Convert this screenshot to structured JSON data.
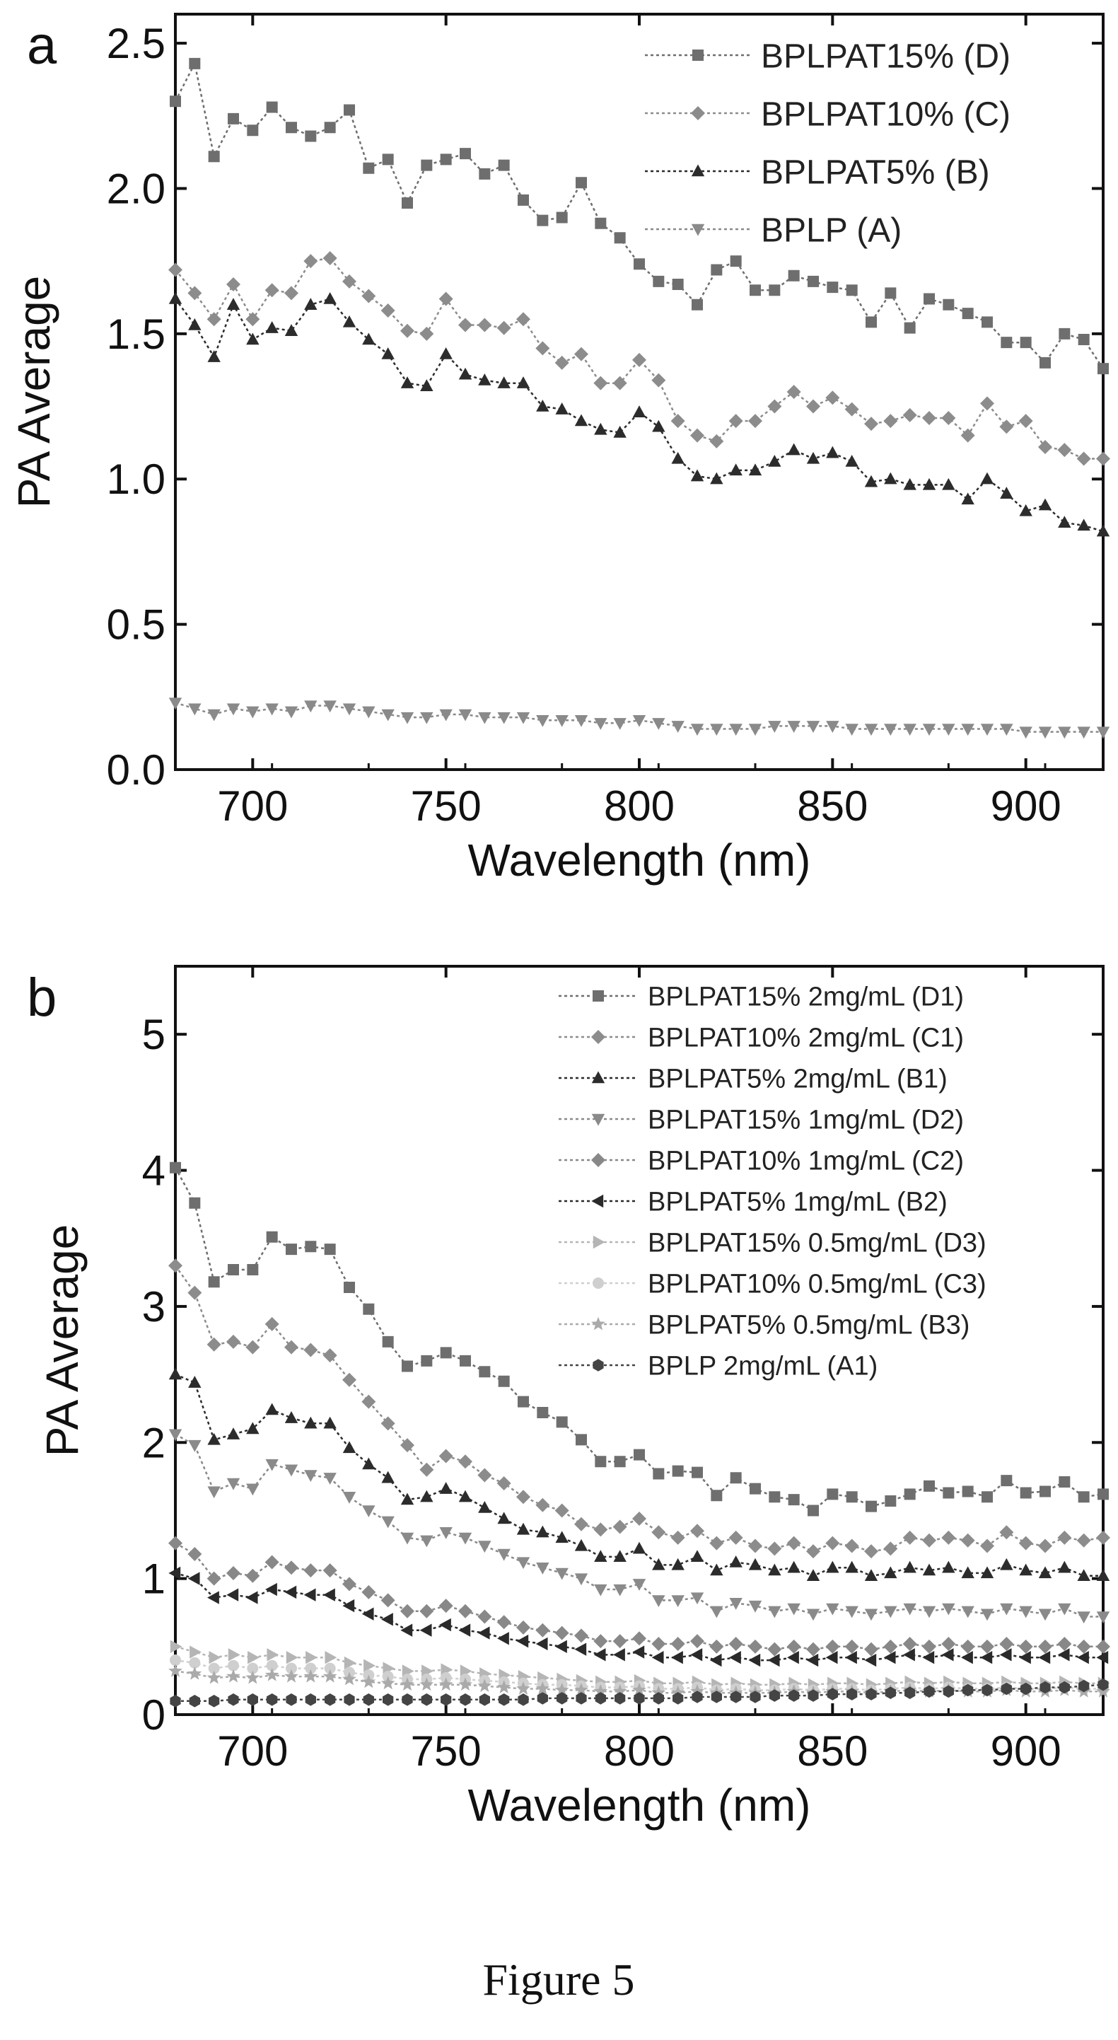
{
  "caption": "Figure 5",
  "colors": {
    "axis": "#111111",
    "series": [
      "#6e6e6e",
      "#8c8c8c",
      "#2c2c2c",
      "#8a8a8a",
      "#888888",
      "#2a2a2a",
      "#b5b5b5",
      "#cfcfcf",
      "#aaaaaa",
      "#444444"
    ]
  },
  "chart_data": [
    {
      "panel_label": "a",
      "type": "scatter",
      "xlabel": "Wavelength (nm)",
      "ylabel": "PA Average",
      "xlim": [
        680,
        920
      ],
      "ylim": [
        0.0,
        2.6
      ],
      "xticks": [
        700,
        750,
        800,
        850,
        900
      ],
      "xtick_labels": [
        "700",
        "750",
        "800",
        "850",
        "900"
      ],
      "yticks": [
        0.0,
        0.5,
        1.0,
        1.5,
        2.0,
        2.5
      ],
      "ytick_labels": [
        "0.0",
        "0.5",
        "1.0",
        "1.5",
        "2.0",
        "2.5"
      ],
      "legend_position": "top-right",
      "grid": false,
      "x": [
        680,
        685,
        690,
        695,
        700,
        705,
        710,
        715,
        720,
        725,
        730,
        735,
        740,
        745,
        750,
        755,
        760,
        765,
        770,
        775,
        780,
        785,
        790,
        795,
        800,
        805,
        810,
        815,
        820,
        825,
        830,
        835,
        840,
        845,
        850,
        855,
        860,
        865,
        870,
        875,
        880,
        885,
        890,
        895,
        900,
        905,
        910,
        915,
        920
      ],
      "series": [
        {
          "name": "BPLPAT15% (D)",
          "marker": "square",
          "values": [
            2.3,
            2.43,
            2.11,
            2.24,
            2.2,
            2.28,
            2.21,
            2.18,
            2.21,
            2.27,
            2.07,
            2.1,
            1.95,
            2.08,
            2.1,
            2.12,
            2.05,
            2.08,
            1.96,
            1.89,
            1.9,
            2.02,
            1.88,
            1.83,
            1.74,
            1.68,
            1.67,
            1.6,
            1.72,
            1.75,
            1.65,
            1.65,
            1.7,
            1.68,
            1.66,
            1.65,
            1.54,
            1.64,
            1.52,
            1.62,
            1.6,
            1.57,
            1.54,
            1.47,
            1.47,
            1.4,
            1.5,
            1.48,
            1.38
          ]
        },
        {
          "name": "BPLPAT10% (C)",
          "marker": "diamond",
          "values": [
            1.72,
            1.64,
            1.55,
            1.67,
            1.55,
            1.65,
            1.64,
            1.75,
            1.76,
            1.68,
            1.63,
            1.58,
            1.51,
            1.5,
            1.62,
            1.53,
            1.53,
            1.52,
            1.55,
            1.45,
            1.4,
            1.43,
            1.33,
            1.33,
            1.41,
            1.34,
            1.2,
            1.15,
            1.13,
            1.2,
            1.2,
            1.25,
            1.3,
            1.25,
            1.28,
            1.24,
            1.19,
            1.2,
            1.22,
            1.21,
            1.21,
            1.15,
            1.26,
            1.18,
            1.2,
            1.11,
            1.1,
            1.07,
            1.07
          ]
        },
        {
          "name": "BPLPAT5% (B)",
          "marker": "triangle-up",
          "values": [
            1.62,
            1.53,
            1.42,
            1.6,
            1.48,
            1.52,
            1.51,
            1.6,
            1.62,
            1.54,
            1.48,
            1.43,
            1.33,
            1.32,
            1.43,
            1.36,
            1.34,
            1.33,
            1.33,
            1.25,
            1.24,
            1.2,
            1.17,
            1.16,
            1.23,
            1.18,
            1.07,
            1.01,
            1.0,
            1.03,
            1.03,
            1.06,
            1.1,
            1.07,
            1.09,
            1.06,
            0.99,
            1.0,
            0.98,
            0.98,
            0.98,
            0.93,
            1.0,
            0.95,
            0.89,
            0.91,
            0.85,
            0.84,
            0.82
          ]
        },
        {
          "name": "BPLP (A)",
          "marker": "triangle-down",
          "values": [
            0.23,
            0.21,
            0.19,
            0.21,
            0.2,
            0.21,
            0.2,
            0.22,
            0.22,
            0.21,
            0.2,
            0.19,
            0.18,
            0.18,
            0.19,
            0.19,
            0.18,
            0.18,
            0.18,
            0.17,
            0.17,
            0.17,
            0.16,
            0.16,
            0.17,
            0.16,
            0.15,
            0.14,
            0.14,
            0.14,
            0.14,
            0.15,
            0.15,
            0.15,
            0.15,
            0.14,
            0.14,
            0.14,
            0.14,
            0.14,
            0.14,
            0.14,
            0.14,
            0.14,
            0.13,
            0.13,
            0.13,
            0.13,
            0.13
          ]
        }
      ]
    },
    {
      "panel_label": "b",
      "type": "scatter",
      "xlabel": "Wavelength (nm)",
      "ylabel": "PA Average",
      "xlim": [
        680,
        920
      ],
      "ylim": [
        0,
        5.5
      ],
      "xticks": [
        700,
        750,
        800,
        850,
        900
      ],
      "xtick_labels": [
        "700",
        "750",
        "800",
        "850",
        "900"
      ],
      "yticks": [
        0,
        1,
        2,
        3,
        4,
        5
      ],
      "ytick_labels": [
        "0",
        "1",
        "2",
        "3",
        "4",
        "5"
      ],
      "legend_position": "top-right",
      "grid": false,
      "x": [
        680,
        685,
        690,
        695,
        700,
        705,
        710,
        715,
        720,
        725,
        730,
        735,
        740,
        745,
        750,
        755,
        760,
        765,
        770,
        775,
        780,
        785,
        790,
        795,
        800,
        805,
        810,
        815,
        820,
        825,
        830,
        835,
        840,
        845,
        850,
        855,
        860,
        865,
        870,
        875,
        880,
        885,
        890,
        895,
        900,
        905,
        910,
        915,
        920
      ],
      "series": [
        {
          "name": "BPLPAT15% 2mg/mL (D1)",
          "marker": "square",
          "values": [
            4.02,
            3.76,
            3.18,
            3.27,
            3.27,
            3.51,
            3.42,
            3.44,
            3.42,
            3.14,
            2.98,
            2.74,
            2.56,
            2.6,
            2.66,
            2.6,
            2.52,
            2.45,
            2.3,
            2.22,
            2.15,
            2.02,
            1.86,
            1.86,
            1.91,
            1.77,
            1.79,
            1.78,
            1.61,
            1.74,
            1.66,
            1.6,
            1.58,
            1.5,
            1.62,
            1.6,
            1.53,
            1.57,
            1.62,
            1.68,
            1.63,
            1.64,
            1.6,
            1.72,
            1.63,
            1.64,
            1.71,
            1.6,
            1.62
          ]
        },
        {
          "name": "BPLPAT10% 2mg/mL (C1)",
          "marker": "diamond",
          "values": [
            3.3,
            3.1,
            2.72,
            2.74,
            2.7,
            2.87,
            2.7,
            2.68,
            2.64,
            2.46,
            2.3,
            2.14,
            1.98,
            1.8,
            1.9,
            1.86,
            1.76,
            1.7,
            1.6,
            1.54,
            1.5,
            1.4,
            1.36,
            1.38,
            1.44,
            1.34,
            1.3,
            1.35,
            1.26,
            1.3,
            1.24,
            1.22,
            1.26,
            1.2,
            1.26,
            1.24,
            1.2,
            1.22,
            1.3,
            1.28,
            1.3,
            1.28,
            1.24,
            1.34,
            1.26,
            1.24,
            1.3,
            1.28,
            1.3
          ]
        },
        {
          "name": "BPLPAT5% 2mg/mL (B1)",
          "marker": "triangle-up",
          "values": [
            2.5,
            2.44,
            2.02,
            2.06,
            2.1,
            2.24,
            2.18,
            2.14,
            2.14,
            1.96,
            1.84,
            1.74,
            1.58,
            1.6,
            1.66,
            1.6,
            1.52,
            1.44,
            1.36,
            1.34,
            1.3,
            1.24,
            1.16,
            1.16,
            1.22,
            1.1,
            1.1,
            1.16,
            1.06,
            1.12,
            1.1,
            1.06,
            1.08,
            1.02,
            1.08,
            1.08,
            1.02,
            1.04,
            1.08,
            1.06,
            1.08,
            1.04,
            1.04,
            1.1,
            1.06,
            1.04,
            1.08,
            1.02,
            1.02
          ]
        },
        {
          "name": "BPLPAT15% 1mg/mL (D2)",
          "marker": "triangle-down",
          "values": [
            2.06,
            1.98,
            1.64,
            1.7,
            1.66,
            1.84,
            1.8,
            1.76,
            1.74,
            1.6,
            1.5,
            1.42,
            1.3,
            1.28,
            1.34,
            1.3,
            1.24,
            1.18,
            1.12,
            1.08,
            1.04,
            1.0,
            0.92,
            0.92,
            0.96,
            0.84,
            0.84,
            0.86,
            0.76,
            0.82,
            0.8,
            0.76,
            0.78,
            0.74,
            0.78,
            0.76,
            0.74,
            0.76,
            0.78,
            0.76,
            0.78,
            0.76,
            0.74,
            0.78,
            0.76,
            0.74,
            0.78,
            0.72,
            0.72
          ]
        },
        {
          "name": "BPLPAT10% 1mg/mL (C2)",
          "marker": "diamond",
          "values": [
            1.26,
            1.18,
            1.0,
            1.04,
            1.02,
            1.12,
            1.08,
            1.06,
            1.06,
            0.96,
            0.9,
            0.84,
            0.76,
            0.76,
            0.8,
            0.76,
            0.72,
            0.68,
            0.64,
            0.62,
            0.6,
            0.58,
            0.54,
            0.54,
            0.56,
            0.52,
            0.52,
            0.54,
            0.5,
            0.52,
            0.5,
            0.48,
            0.5,
            0.48,
            0.5,
            0.5,
            0.48,
            0.5,
            0.52,
            0.5,
            0.52,
            0.5,
            0.5,
            0.52,
            0.5,
            0.5,
            0.52,
            0.5,
            0.5
          ]
        },
        {
          "name": "BPLPAT5% 1mg/mL (B2)",
          "marker": "triangle-left",
          "values": [
            1.04,
            1.0,
            0.86,
            0.88,
            0.86,
            0.92,
            0.9,
            0.88,
            0.88,
            0.8,
            0.74,
            0.7,
            0.62,
            0.62,
            0.66,
            0.62,
            0.6,
            0.56,
            0.54,
            0.52,
            0.5,
            0.48,
            0.44,
            0.44,
            0.46,
            0.42,
            0.42,
            0.44,
            0.4,
            0.42,
            0.4,
            0.4,
            0.42,
            0.4,
            0.42,
            0.42,
            0.4,
            0.42,
            0.44,
            0.42,
            0.44,
            0.42,
            0.42,
            0.44,
            0.42,
            0.42,
            0.44,
            0.42,
            0.42
          ]
        },
        {
          "name": "BPLPAT15% 0.5mg/mL (D3)",
          "marker": "triangle-right",
          "values": [
            0.5,
            0.46,
            0.42,
            0.44,
            0.42,
            0.44,
            0.42,
            0.42,
            0.42,
            0.38,
            0.36,
            0.34,
            0.32,
            0.32,
            0.33,
            0.32,
            0.3,
            0.29,
            0.28,
            0.27,
            0.26,
            0.25,
            0.24,
            0.24,
            0.25,
            0.23,
            0.23,
            0.24,
            0.22,
            0.23,
            0.22,
            0.22,
            0.23,
            0.22,
            0.23,
            0.23,
            0.22,
            0.23,
            0.24,
            0.23,
            0.24,
            0.23,
            0.23,
            0.24,
            0.23,
            0.23,
            0.24,
            0.23,
            0.23
          ]
        },
        {
          "name": "BPLPAT10% 0.5mg/mL (C3)",
          "marker": "circle",
          "values": [
            0.4,
            0.38,
            0.34,
            0.36,
            0.34,
            0.36,
            0.34,
            0.34,
            0.34,
            0.31,
            0.29,
            0.28,
            0.26,
            0.26,
            0.27,
            0.26,
            0.25,
            0.24,
            0.23,
            0.22,
            0.22,
            0.21,
            0.2,
            0.2,
            0.21,
            0.19,
            0.19,
            0.2,
            0.18,
            0.19,
            0.18,
            0.18,
            0.19,
            0.18,
            0.19,
            0.19,
            0.18,
            0.19,
            0.2,
            0.19,
            0.2,
            0.19,
            0.19,
            0.2,
            0.19,
            0.19,
            0.2,
            0.19,
            0.19
          ]
        },
        {
          "name": "BPLPAT5% 0.5mg/mL (B3)",
          "marker": "star",
          "values": [
            0.32,
            0.3,
            0.27,
            0.28,
            0.27,
            0.29,
            0.28,
            0.28,
            0.28,
            0.26,
            0.24,
            0.23,
            0.22,
            0.22,
            0.22,
            0.22,
            0.21,
            0.2,
            0.19,
            0.19,
            0.18,
            0.18,
            0.17,
            0.17,
            0.18,
            0.16,
            0.16,
            0.17,
            0.16,
            0.16,
            0.16,
            0.16,
            0.17,
            0.16,
            0.17,
            0.17,
            0.16,
            0.17,
            0.18,
            0.17,
            0.18,
            0.17,
            0.17,
            0.18,
            0.17,
            0.17,
            0.18,
            0.17,
            0.17
          ]
        },
        {
          "name": "BPLP 2mg/mL (A1)",
          "marker": "hexagon",
          "values": [
            0.1,
            0.1,
            0.1,
            0.11,
            0.11,
            0.11,
            0.11,
            0.11,
            0.11,
            0.11,
            0.11,
            0.11,
            0.11,
            0.11,
            0.11,
            0.11,
            0.11,
            0.11,
            0.11,
            0.12,
            0.12,
            0.12,
            0.12,
            0.12,
            0.12,
            0.12,
            0.12,
            0.13,
            0.13,
            0.13,
            0.13,
            0.14,
            0.14,
            0.14,
            0.15,
            0.15,
            0.15,
            0.16,
            0.16,
            0.17,
            0.17,
            0.18,
            0.18,
            0.19,
            0.19,
            0.2,
            0.2,
            0.21,
            0.22
          ]
        }
      ]
    }
  ]
}
